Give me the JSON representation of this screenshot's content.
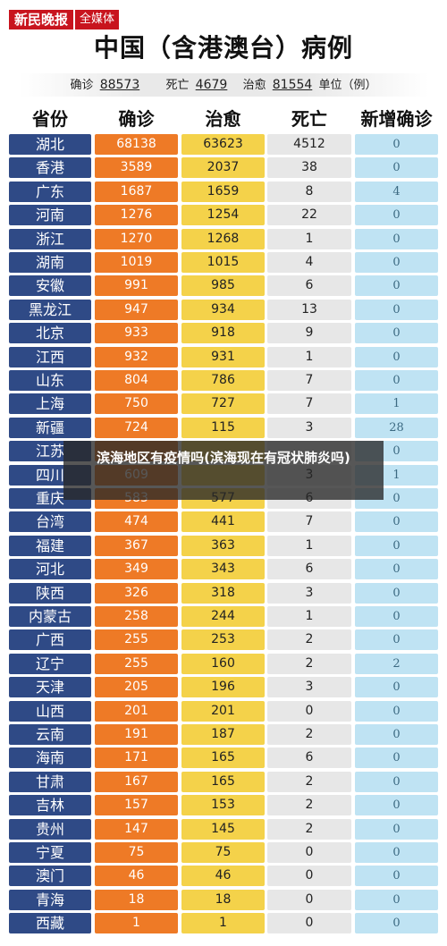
{
  "header": {
    "logo_text": "新民晚报",
    "logo_sub": "全媒体",
    "title": "中国（含港澳台）病例"
  },
  "summary": {
    "confirmed_label": "确诊",
    "confirmed_value": "88573",
    "deaths_label": "死亡",
    "deaths_value": "4679",
    "cured_label": "治愈",
    "cured_value": "81554",
    "unit_text": "单位（例）"
  },
  "columns": [
    "省份",
    "确诊",
    "治愈",
    "死亡",
    "新增确诊"
  ],
  "rows": [
    {
      "province": "湖北",
      "confirmed": "68138",
      "cured": "63623",
      "deaths": "4512",
      "new": "0"
    },
    {
      "province": "香港",
      "confirmed": "3589",
      "cured": "2037",
      "deaths": "38",
      "new": "0"
    },
    {
      "province": "广东",
      "confirmed": "1687",
      "cured": "1659",
      "deaths": "8",
      "new": "4"
    },
    {
      "province": "河南",
      "confirmed": "1276",
      "cured": "1254",
      "deaths": "22",
      "new": "0"
    },
    {
      "province": "浙江",
      "confirmed": "1270",
      "cured": "1268",
      "deaths": "1",
      "new": "0"
    },
    {
      "province": "湖南",
      "confirmed": "1019",
      "cured": "1015",
      "deaths": "4",
      "new": "0"
    },
    {
      "province": "安徽",
      "confirmed": "991",
      "cured": "985",
      "deaths": "6",
      "new": "0"
    },
    {
      "province": "黑龙江",
      "confirmed": "947",
      "cured": "934",
      "deaths": "13",
      "new": "0"
    },
    {
      "province": "北京",
      "confirmed": "933",
      "cured": "918",
      "deaths": "9",
      "new": "0"
    },
    {
      "province": "江西",
      "confirmed": "932",
      "cured": "931",
      "deaths": "1",
      "new": "0"
    },
    {
      "province": "山东",
      "confirmed": "804",
      "cured": "786",
      "deaths": "7",
      "new": "0"
    },
    {
      "province": "上海",
      "confirmed": "750",
      "cured": "727",
      "deaths": "7",
      "new": "1"
    },
    {
      "province": "新疆",
      "confirmed": "724",
      "cured": "115",
      "deaths": "3",
      "new": "28"
    },
    {
      "province": "江苏",
      "confirmed": "",
      "cured": "",
      "deaths": "",
      "new": "0"
    },
    {
      "province": "四川",
      "confirmed": "609",
      "cured": "",
      "deaths": "3",
      "new": "1"
    },
    {
      "province": "重庆",
      "confirmed": "583",
      "cured": "577",
      "deaths": "6",
      "new": "0"
    },
    {
      "province": "台湾",
      "confirmed": "474",
      "cured": "441",
      "deaths": "7",
      "new": "0"
    },
    {
      "province": "福建",
      "confirmed": "367",
      "cured": "363",
      "deaths": "1",
      "new": "0"
    },
    {
      "province": "河北",
      "confirmed": "349",
      "cured": "343",
      "deaths": "6",
      "new": "0"
    },
    {
      "province": "陕西",
      "confirmed": "326",
      "cured": "318",
      "deaths": "3",
      "new": "0"
    },
    {
      "province": "内蒙古",
      "confirmed": "258",
      "cured": "244",
      "deaths": "1",
      "new": "0"
    },
    {
      "province": "广西",
      "confirmed": "255",
      "cured": "253",
      "deaths": "2",
      "new": "0"
    },
    {
      "province": "辽宁",
      "confirmed": "255",
      "cured": "160",
      "deaths": "2",
      "new": "2"
    },
    {
      "province": "天津",
      "confirmed": "205",
      "cured": "196",
      "deaths": "3",
      "new": "0"
    },
    {
      "province": "山西",
      "confirmed": "201",
      "cured": "201",
      "deaths": "0",
      "new": "0"
    },
    {
      "province": "云南",
      "confirmed": "191",
      "cured": "187",
      "deaths": "2",
      "new": "0"
    },
    {
      "province": "海南",
      "confirmed": "171",
      "cured": "165",
      "deaths": "6",
      "new": "0"
    },
    {
      "province": "甘肃",
      "confirmed": "167",
      "cured": "165",
      "deaths": "2",
      "new": "0"
    },
    {
      "province": "吉林",
      "confirmed": "157",
      "cured": "153",
      "deaths": "2",
      "new": "0"
    },
    {
      "province": "贵州",
      "confirmed": "147",
      "cured": "145",
      "deaths": "2",
      "new": "0"
    },
    {
      "province": "宁夏",
      "confirmed": "75",
      "cured": "75",
      "deaths": "0",
      "new": "0"
    },
    {
      "province": "澳门",
      "confirmed": "46",
      "cured": "46",
      "deaths": "0",
      "new": "0"
    },
    {
      "province": "青海",
      "confirmed": "18",
      "cured": "18",
      "deaths": "0",
      "new": "0"
    },
    {
      "province": "西藏",
      "confirmed": "1",
      "cured": "1",
      "deaths": "0",
      "new": "0"
    }
  ],
  "overlay_caption": "滨海地区有疫情吗(滨海现在有冠状肺炎吗)",
  "colors": {
    "brand_red": "#c8141e",
    "province_bg": "#2f4a86",
    "confirmed_bg": "#ee7a26",
    "cured_bg": "#f4d24a",
    "deaths_bg": "#e7e7e7",
    "new_bg": "#bfe3f3"
  }
}
